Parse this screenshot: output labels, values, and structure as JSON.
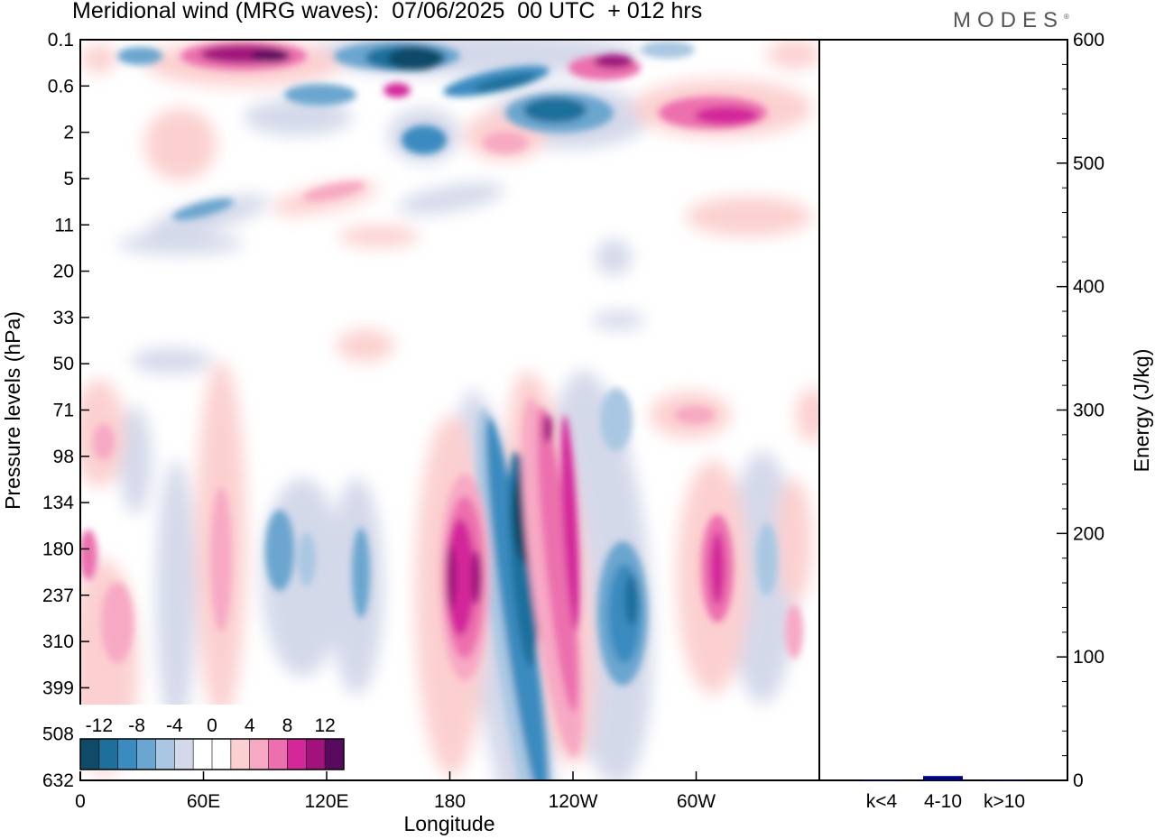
{
  "header": {
    "title": "Meridional wind (MRG waves):  07/06/2025  00 UTC  + 012 hrs",
    "logo": "MODES",
    "logo_mark": "®"
  },
  "chart_data": [
    {
      "type": "heatmap",
      "xlabel": "Longitude",
      "ylabel": "Pressure levels (hPa)",
      "x_ticks": [
        "0",
        "60E",
        "120E",
        "180",
        "120W",
        "60W"
      ],
      "y_ticks": [
        "0.1",
        "0.6",
        "2",
        "5",
        "11",
        "20",
        "33",
        "50",
        "71",
        "98",
        "134",
        "180",
        "237",
        "310",
        "399",
        "508",
        "632"
      ],
      "colorbar": {
        "labels": [
          "-12",
          "-8",
          "-4",
          "0",
          "4",
          "8",
          "12"
        ],
        "colors": [
          "#0f4a68",
          "#1f6f9c",
          "#3a8bc0",
          "#6aa6cf",
          "#a9c7e2",
          "#d4d9ea",
          "#ffffff",
          "#ffffff",
          "#fcd0d0",
          "#f7a9c4",
          "#ec6fae",
          "#d3279a",
          "#a1127d",
          "#5a0a5e"
        ]
      },
      "features": [
        {
          "sign": "negative",
          "longitude": 200,
          "pressure": "180",
          "magnitude": 16
        },
        {
          "sign": "positive",
          "longitude": 184,
          "pressure": "237",
          "magnitude": 14
        },
        {
          "sign": "positive",
          "longitude": 228,
          "pressure": "180",
          "magnitude": 12
        },
        {
          "sign": "negative",
          "longitude": 262,
          "pressure": "237",
          "magnitude": 12
        },
        {
          "sign": "positive",
          "longitude": 310,
          "pressure": "180",
          "magnitude": 12
        },
        {
          "sign": "positive",
          "longitude": 70,
          "pressure": "0.1",
          "magnitude": 12
        },
        {
          "sign": "negative",
          "longitude": 162,
          "pressure": "0.1",
          "magnitude": 16
        },
        {
          "sign": "positive",
          "longitude": 240,
          "pressure": "0.1",
          "magnitude": 10
        },
        {
          "sign": "positive",
          "longitude": 318,
          "pressure": "2",
          "magnitude": 10
        },
        {
          "sign": "negative",
          "longitude": 234,
          "pressure": "2",
          "magnitude": 12
        }
      ]
    },
    {
      "type": "bar",
      "ylabel": "Energy (J/kg)",
      "categories": [
        "k<4",
        "4-10",
        "k>10"
      ],
      "values": [
        0.5,
        3.5,
        0.3
      ],
      "ylim": [
        0,
        600
      ],
      "y_ticks": [
        "0",
        "100",
        "200",
        "300",
        "400",
        "500",
        "600"
      ],
      "bar_color": "#00008b"
    }
  ]
}
